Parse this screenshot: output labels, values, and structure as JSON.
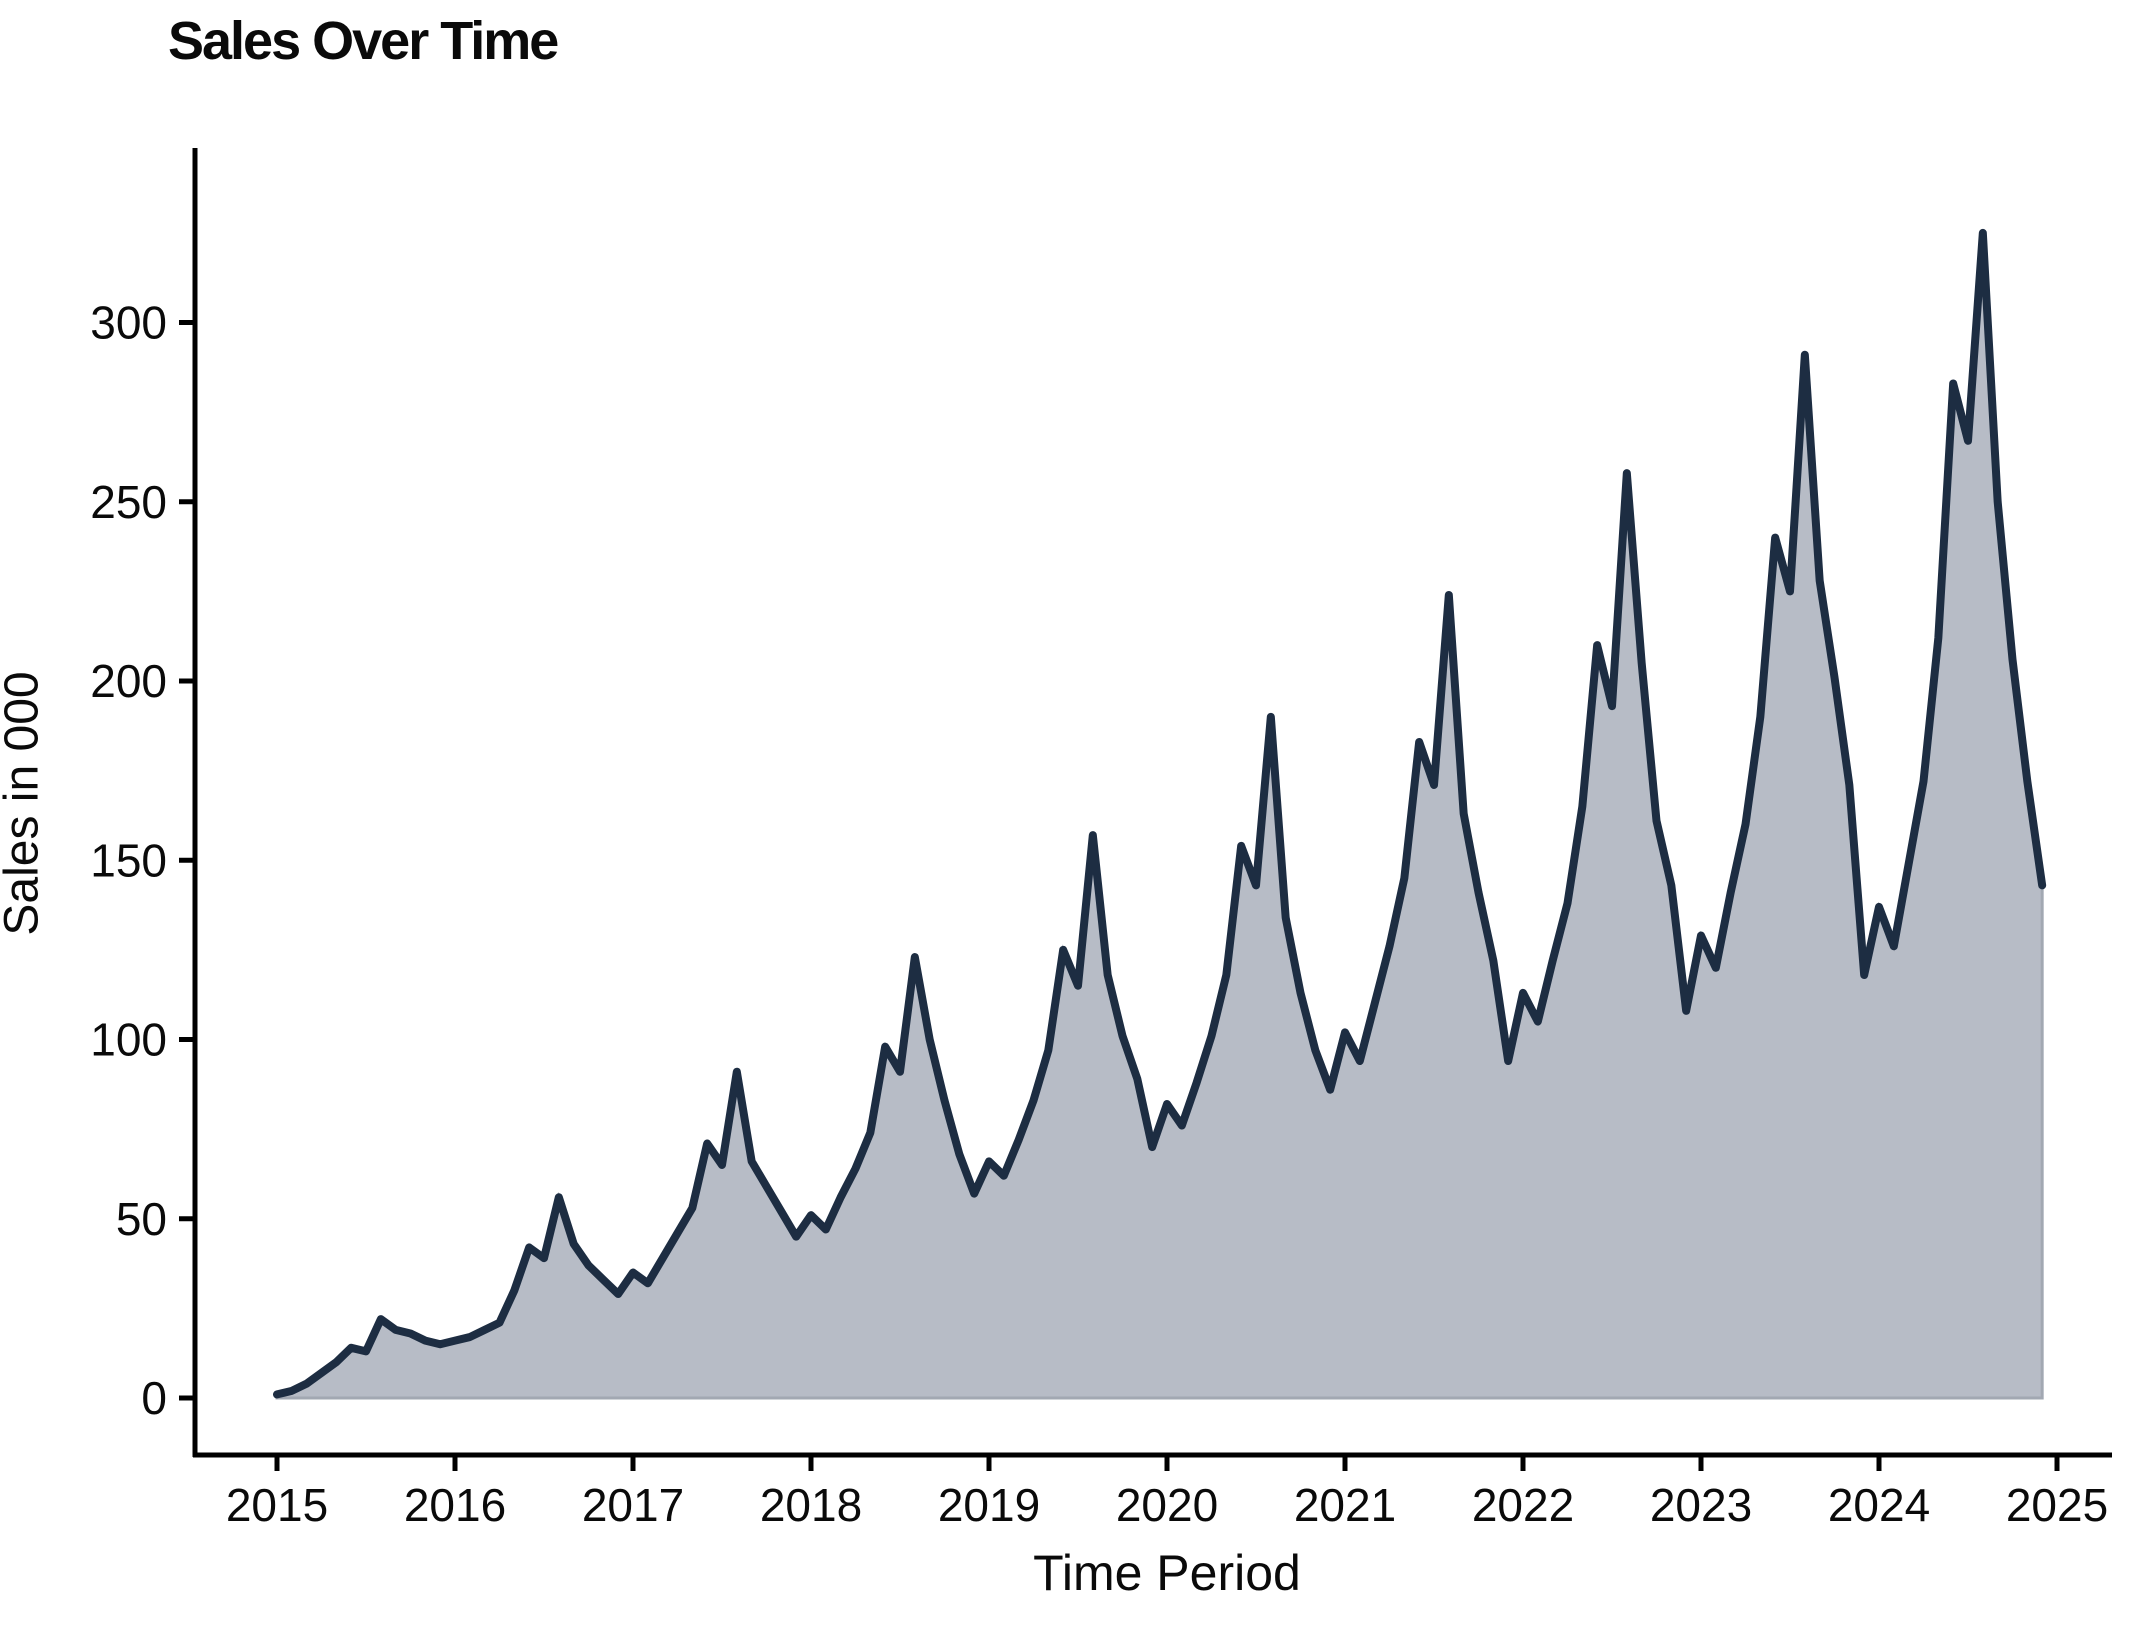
{
  "chart_data": {
    "type": "area",
    "title": "Sales Over Time",
    "xlabel": "Time Period",
    "ylabel": "Sales in 000",
    "x_start": "2015-01",
    "x_end": "2024-12",
    "frequency": "monthly",
    "series": [
      {
        "name": "Sales",
        "values": [
          1,
          2,
          4,
          7,
          10,
          14,
          13,
          22,
          19,
          18,
          16,
          15,
          16,
          17,
          19,
          21,
          30,
          42,
          39,
          56,
          43,
          37,
          33,
          29,
          35,
          32,
          39,
          46,
          53,
          71,
          65,
          91,
          66,
          59,
          52,
          45,
          51,
          47,
          56,
          64,
          74,
          98,
          91,
          123,
          100,
          83,
          68,
          57,
          66,
          62,
          72,
          83,
          97,
          125,
          115,
          157,
          118,
          101,
          89,
          70,
          82,
          76,
          88,
          101,
          118,
          154,
          143,
          190,
          134,
          113,
          97,
          86,
          102,
          94,
          110,
          126,
          145,
          183,
          171,
          224,
          163,
          141,
          122,
          94,
          113,
          105,
          122,
          138,
          165,
          210,
          193,
          258,
          205,
          161,
          143,
          108,
          129,
          120,
          141,
          160,
          190,
          240,
          225,
          291,
          228,
          201,
          171,
          118,
          137,
          126,
          149,
          172,
          212,
          283,
          267,
          325,
          250,
          206,
          172,
          143
        ]
      }
    ],
    "annual_peaks_aug": [
      22,
      56,
      91,
      123,
      157,
      190,
      224,
      258,
      291,
      325
    ],
    "xticks": [
      "2015",
      "2016",
      "2017",
      "2018",
      "2019",
      "2020",
      "2021",
      "2022",
      "2023",
      "2024",
      "2025"
    ],
    "yticks": [
      0,
      50,
      100,
      150,
      200,
      250,
      300
    ],
    "ylim": [
      0,
      340
    ],
    "grid": false,
    "legend": false,
    "colors": {
      "line": "#1d2d42",
      "fill": "#b7bcc6",
      "fill_edge": "#a2a8b2",
      "axis": "#000000",
      "text": "#0a0a0a",
      "background": "#ffffff"
    }
  }
}
